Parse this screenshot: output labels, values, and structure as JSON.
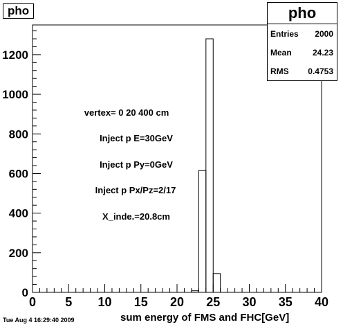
{
  "histogram_title": "pho",
  "stats": {
    "name": "pho",
    "rows": [
      {
        "label": "Entries",
        "value": "2000"
      },
      {
        "label": "Mean",
        "value": "24.23"
      },
      {
        "label": "RMS",
        "value": "0.4753"
      }
    ]
  },
  "annotations": [
    "vertex= 0 20 400 cm",
    "Inject p E=30GeV",
    "Inject p Py=0GeV",
    "Inject p Px/Pz=2/17",
    "X_inde.=20.8cm"
  ],
  "timestamp": "Tue Aug  4 16:29:40 2009",
  "chart_data": {
    "type": "bar",
    "title": "pho",
    "xlabel": "sum energy of FMS and FHC[GeV]",
    "ylabel": "",
    "xlim": [
      0,
      40
    ],
    "ylim": [
      0,
      1350
    ],
    "x_ticks": [
      0,
      5,
      10,
      15,
      20,
      25,
      30,
      35,
      40
    ],
    "y_ticks": [
      0,
      200,
      400,
      600,
      800,
      1000,
      1200
    ],
    "bin_width": 1,
    "bins": [
      {
        "x_low": 22,
        "x_high": 23,
        "value": 8
      },
      {
        "x_low": 23,
        "x_high": 24,
        "value": 615
      },
      {
        "x_low": 24,
        "x_high": 25,
        "value": 1280
      },
      {
        "x_low": 25,
        "x_high": 26,
        "value": 95
      }
    ],
    "grid": false,
    "line_color": "#000000"
  }
}
